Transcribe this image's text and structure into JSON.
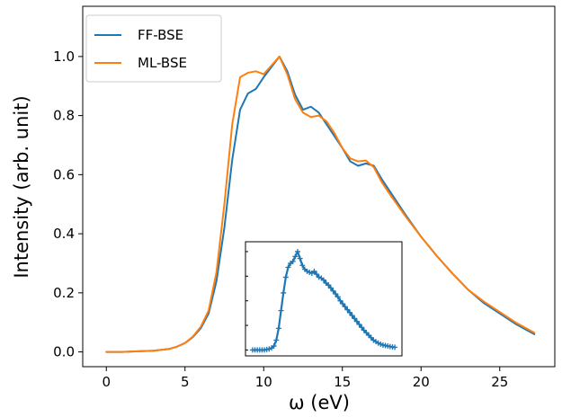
{
  "chart_data": [
    {
      "type": "line",
      "xlabel": "ω (eV)",
      "ylabel": "Intensity (arb. unit)",
      "xlim": [
        -1.5,
        28.5
      ],
      "ylim": [
        -0.05,
        1.17
      ],
      "xticks": [
        0,
        5,
        10,
        15,
        20,
        25
      ],
      "yticks": [
        0.0,
        0.2,
        0.4,
        0.6,
        0.8,
        1.0
      ],
      "legend": {
        "placement": "top-left"
      },
      "grid": false,
      "series": [
        {
          "name": "FF-BSE",
          "color": "#1f77b4",
          "x": [
            0,
            1,
            2,
            3,
            4,
            4.5,
            5,
            5.5,
            6,
            6.5,
            7,
            7.5,
            8,
            8.5,
            9,
            9.5,
            10,
            10.5,
            11,
            11.5,
            12,
            12.5,
            13,
            13.5,
            14,
            14.5,
            15,
            15.5,
            16,
            16.5,
            17,
            17.5,
            18,
            19,
            20,
            21,
            22,
            23,
            24,
            25,
            26,
            27.2
          ],
          "y": [
            0.0,
            0.0,
            0.002,
            0.004,
            0.01,
            0.018,
            0.03,
            0.05,
            0.08,
            0.13,
            0.24,
            0.42,
            0.65,
            0.82,
            0.875,
            0.89,
            0.93,
            0.965,
            1.0,
            0.95,
            0.87,
            0.82,
            0.83,
            0.81,
            0.77,
            0.73,
            0.69,
            0.645,
            0.63,
            0.638,
            0.63,
            0.585,
            0.545,
            0.465,
            0.39,
            0.325,
            0.265,
            0.21,
            0.165,
            0.13,
            0.095,
            0.06
          ]
        },
        {
          "name": "ML-BSE",
          "color": "#ff7f0e",
          "x": [
            0,
            1,
            2,
            3,
            4,
            4.5,
            5,
            5.5,
            6,
            6.5,
            7,
            7.5,
            8,
            8.5,
            9,
            9.5,
            10,
            10.5,
            11,
            11.5,
            12,
            12.5,
            13,
            13.5,
            14,
            14.5,
            15,
            15.5,
            16,
            16.5,
            17,
            17.5,
            18,
            19,
            20,
            21,
            22,
            23,
            24,
            25,
            26,
            27.2
          ],
          "y": [
            0.0,
            0.0,
            0.002,
            0.004,
            0.01,
            0.018,
            0.03,
            0.052,
            0.085,
            0.14,
            0.27,
            0.5,
            0.77,
            0.93,
            0.945,
            0.95,
            0.94,
            0.97,
            1.0,
            0.94,
            0.855,
            0.81,
            0.795,
            0.8,
            0.78,
            0.74,
            0.69,
            0.655,
            0.645,
            0.648,
            0.625,
            0.575,
            0.535,
            0.46,
            0.39,
            0.325,
            0.265,
            0.21,
            0.17,
            0.135,
            0.1,
            0.065
          ]
        }
      ]
    },
    {
      "type": "line",
      "placement": "inset, lower center",
      "xticks_labeled": false,
      "yticks_labeled": false,
      "markers": "plus",
      "series": [
        {
          "color": "#1f77b4",
          "x": [
            0,
            0.3,
            0.6,
            0.9,
            1.2,
            1.5,
            1.8,
            2.1,
            2.4,
            2.7,
            3.0,
            3.3,
            3.6,
            3.9,
            4.2,
            4.5,
            4.8,
            5.1,
            5.4,
            5.7,
            6.0,
            6.3,
            6.6,
            6.9,
            7.2,
            7.5,
            7.8,
            8.1,
            8.4,
            8.7,
            9.0,
            9.3,
            9.6,
            9.9,
            10.2,
            10.5,
            10.8,
            11.1,
            11.4,
            11.7,
            12.0,
            12.3,
            12.6,
            12.9,
            13.2,
            13.5,
            13.8,
            14.1,
            14.4,
            14.7,
            15.0,
            15.3,
            15.6,
            15.9,
            16.2,
            16.5,
            16.8,
            17.1,
            17.4,
            17.7,
            18.0
          ],
          "y": [
            0.0,
            0.0,
            0.0,
            0.0,
            0.0,
            0.0,
            0.005,
            0.01,
            0.02,
            0.04,
            0.1,
            0.22,
            0.4,
            0.58,
            0.74,
            0.84,
            0.88,
            0.9,
            0.95,
            1.0,
            0.93,
            0.86,
            0.82,
            0.8,
            0.79,
            0.78,
            0.8,
            0.77,
            0.74,
            0.73,
            0.71,
            0.68,
            0.66,
            0.63,
            0.6,
            0.57,
            0.54,
            0.5,
            0.47,
            0.44,
            0.41,
            0.38,
            0.35,
            0.32,
            0.29,
            0.26,
            0.23,
            0.2,
            0.175,
            0.15,
            0.125,
            0.1,
            0.085,
            0.07,
            0.06,
            0.05,
            0.045,
            0.04,
            0.035,
            0.03,
            0.028
          ]
        }
      ]
    }
  ]
}
